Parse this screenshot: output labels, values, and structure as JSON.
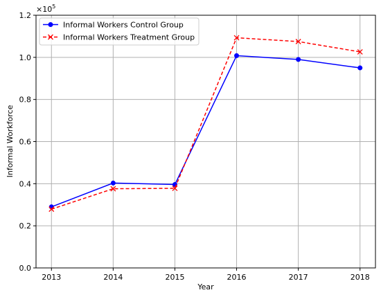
{
  "chart_data": {
    "type": "line",
    "xlabel": "Year",
    "ylabel": "Informal Workforce",
    "scale_label": "×10",
    "scale_exp": "5",
    "x": [
      2013,
      2014,
      2015,
      2016,
      2017,
      2018
    ],
    "x_ticks": [
      "2013",
      "2014",
      "2015",
      "2016",
      "2017",
      "2018"
    ],
    "y_ticks": [
      "0.0",
      "0.2",
      "0.4",
      "0.6",
      "0.8",
      "1.0",
      "1.2"
    ],
    "y_tick_values": [
      0.0,
      0.2,
      0.4,
      0.6,
      0.8,
      1.0,
      1.2
    ],
    "xlim": [
      2012.75,
      2018.25
    ],
    "ylim": [
      0.0,
      1.2
    ],
    "grid": true,
    "legend_position": "top-left",
    "series": [
      {
        "name": "Informal Workers Control Group",
        "values": [
          0.29,
          0.403,
          0.396,
          1.008,
          0.99,
          0.95
        ],
        "color": "#0000ff",
        "linestyle": "solid",
        "marker": "circle"
      },
      {
        "name": "Informal Workers Treatment Group",
        "values": [
          0.279,
          0.376,
          0.378,
          1.093,
          1.075,
          1.026
        ],
        "color": "#ff0000",
        "linestyle": "dashed",
        "marker": "x"
      }
    ]
  }
}
